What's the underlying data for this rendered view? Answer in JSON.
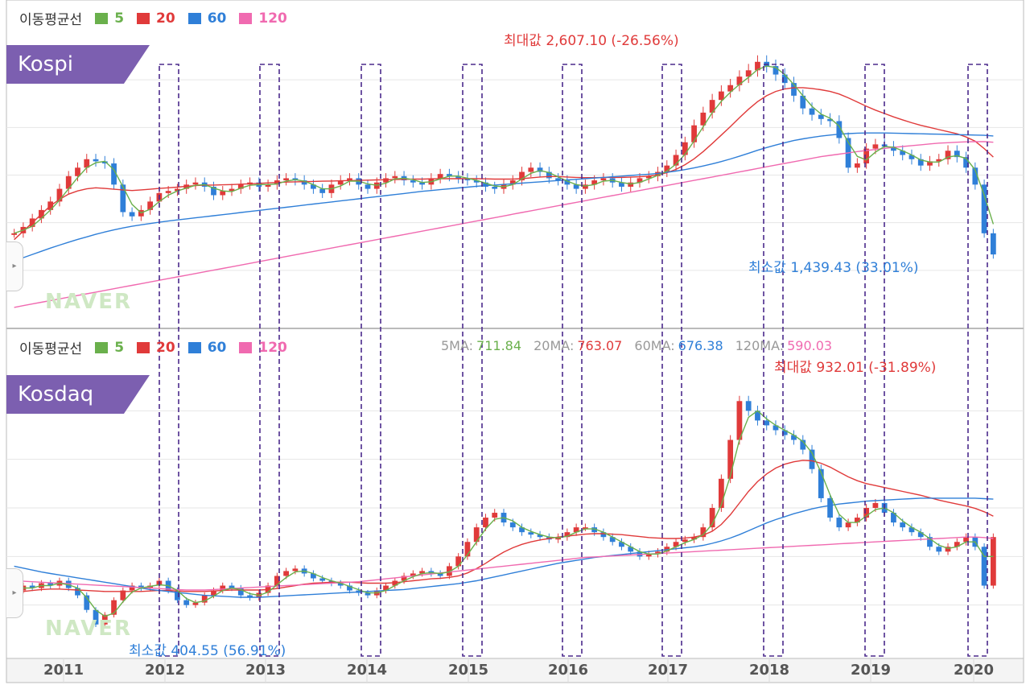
{
  "legend": {
    "title": "이동평균선",
    "items": [
      {
        "label": "5",
        "color": "#6ab04c"
      },
      {
        "label": "20",
        "color": "#e03a3a"
      },
      {
        "label": "60",
        "color": "#2f7fd8"
      },
      {
        "label": "120",
        "color": "#f06ab0"
      }
    ]
  },
  "watermark": "NAVER",
  "readout": {
    "ma5_label": "5MA:",
    "ma5_value": "711.84",
    "ma20_label": "20MA:",
    "ma20_value": "763.07",
    "ma60_label": "60MA:",
    "ma60_value": "676.38",
    "ma120_label": "120MA:",
    "ma120_value": "590.03"
  },
  "chart_data": [
    {
      "type": "candlestick",
      "title": "Kospi",
      "x_ticks": [
        "2011",
        "2012",
        "2013",
        "2014",
        "2015",
        "2016",
        "2017",
        "2018",
        "2019",
        "2020"
      ],
      "max_annotation": "최대값 2,607.10 (-26.56%)",
      "min_annotation": "최소값 1,439.43 (33.01%)",
      "ylim": [
        1350,
        2700
      ],
      "candles": [
        1750,
        1780,
        1820,
        1860,
        1900,
        1960,
        2020,
        2060,
        2100,
        2090,
        2080,
        1980,
        1850,
        1830,
        1860,
        1900,
        1940,
        1950,
        1960,
        1980,
        1990,
        1970,
        1930,
        1950,
        1960,
        1980,
        1990,
        1970,
        1980,
        2000,
        2010,
        2000,
        1980,
        1960,
        1940,
        1980,
        2000,
        2010,
        1980,
        1960,
        1990,
        2010,
        2020,
        2000,
        1990,
        1980,
        2010,
        2030,
        2020,
        2010,
        2000,
        1990,
        1970,
        1960,
        1980,
        2000,
        2040,
        2060,
        2040,
        2010,
        2000,
        1980,
        1960,
        1980,
        2000,
        2010,
        1990,
        1970,
        1990,
        2010,
        2020,
        2040,
        2070,
        2120,
        2180,
        2260,
        2320,
        2380,
        2420,
        2450,
        2490,
        2520,
        2560,
        2540,
        2500,
        2460,
        2400,
        2340,
        2310,
        2290,
        2280,
        2200,
        2060,
        2080,
        2150,
        2170,
        2160,
        2140,
        2120,
        2100,
        2070,
        2090,
        2100,
        2140,
        2110,
        2060,
        1980,
        1750,
        1650
      ],
      "ma20": [
        1720,
        1760,
        1800,
        1840,
        1880,
        1910,
        1935,
        1950,
        1960,
        1965,
        1962,
        1958,
        1955,
        1952,
        1955,
        1958,
        1962,
        1965,
        1968,
        1972,
        1975,
        1978,
        1978,
        1979,
        1980,
        1982,
        1984,
        1986,
        1988,
        1990,
        1992,
        1993,
        1994,
        1995,
        1996,
        1997,
        1998,
        1999,
        2000,
        2001,
        2002,
        2003,
        2004,
        2005,
        2006,
        2006,
        2007,
        2008,
        2008,
        2008,
        2008,
        2008,
        2007,
        2006,
        2006,
        2006,
        2008,
        2012,
        2016,
        2018,
        2018,
        2016,
        2014,
        2013,
        2013,
        2014,
        2014,
        2014,
        2015,
        2017,
        2020,
        2026,
        2036,
        2052,
        2074,
        2102,
        2136,
        2174,
        2214,
        2254,
        2296,
        2336,
        2372,
        2400,
        2420,
        2432,
        2438,
        2438,
        2434,
        2428,
        2420,
        2408,
        2390,
        2370,
        2350,
        2332,
        2316,
        2300,
        2286,
        2272,
        2260,
        2250,
        2240,
        2230,
        2220,
        2205,
        2185,
        2150,
        2110
      ],
      "ma60": [
        1620,
        1635,
        1650,
        1665,
        1680,
        1694,
        1708,
        1721,
        1733,
        1745,
        1756,
        1766,
        1775,
        1783,
        1790,
        1796,
        1802,
        1808,
        1813,
        1818,
        1823,
        1828,
        1833,
        1838,
        1843,
        1848,
        1853,
        1858,
        1863,
        1868,
        1873,
        1878,
        1883,
        1888,
        1893,
        1898,
        1903,
        1908,
        1913,
        1918,
        1923,
        1928,
        1933,
        1938,
        1943,
        1948,
        1952,
        1956,
        1960,
        1964,
        1968,
        1972,
        1975,
        1978,
        1981,
        1984,
        1987,
        1990,
        1993,
        1996,
        1999,
        2002,
        2005,
        2008,
        2011,
        2014,
        2017,
        2020,
        2023,
        2026,
        2029,
        2033,
        2038,
        2044,
        2051,
        2059,
        2068,
        2078,
        2089,
        2101,
        2114,
        2128,
        2142,
        2155,
        2167,
        2178,
        2188,
        2196,
        2203,
        2209,
        2214,
        2218,
        2221,
        2223,
        2224,
        2224,
        2224,
        2223,
        2222,
        2221,
        2220,
        2219,
        2218,
        2217,
        2216,
        2215,
        2214,
        2213,
        2210
      ],
      "ma120": [
        1400,
        1408,
        1416,
        1424,
        1432,
        1440,
        1448,
        1456,
        1464,
        1472,
        1480,
        1488,
        1496,
        1504,
        1512,
        1520,
        1528,
        1536,
        1544,
        1552,
        1560,
        1568,
        1576,
        1584,
        1592,
        1600,
        1608,
        1616,
        1624,
        1632,
        1640,
        1648,
        1656,
        1664,
        1672,
        1680,
        1688,
        1696,
        1704,
        1712,
        1720,
        1728,
        1736,
        1744,
        1752,
        1760,
        1768,
        1776,
        1784,
        1792,
        1800,
        1808,
        1816,
        1824,
        1832,
        1840,
        1848,
        1856,
        1864,
        1872,
        1880,
        1888,
        1896,
        1904,
        1912,
        1920,
        1928,
        1936,
        1944,
        1952,
        1960,
        1968,
        1976,
        1984,
        1992,
        2000,
        2008,
        2016,
        2024,
        2032,
        2040,
        2048,
        2056,
        2064,
        2072,
        2080,
        2088,
        2096,
        2104,
        2112,
        2118,
        2124,
        2130,
        2136,
        2141,
        2146,
        2151,
        2156,
        2160,
        2164,
        2168,
        2172,
        2176,
        2178,
        2180,
        2182,
        2183,
        2183,
        2180
      ]
    },
    {
      "type": "candlestick",
      "title": "Kosdaq",
      "x_ticks": [
        "2011",
        "2012",
        "2013",
        "2014",
        "2015",
        "2016",
        "2017",
        "2018",
        "2019",
        "2020"
      ],
      "max_annotation": "최대값 932.01 (-31.89%)",
      "min_annotation": "최소값 404.55 (56.91%)",
      "ylim": [
        380,
        980
      ],
      "candles": [
        510,
        520,
        515,
        525,
        520,
        530,
        515,
        500,
        470,
        440,
        460,
        490,
        510,
        520,
        515,
        520,
        530,
        510,
        490,
        480,
        485,
        500,
        510,
        520,
        515,
        500,
        495,
        505,
        520,
        540,
        550,
        555,
        545,
        535,
        530,
        525,
        520,
        510,
        505,
        500,
        510,
        520,
        530,
        540,
        545,
        550,
        545,
        540,
        560,
        580,
        610,
        640,
        660,
        670,
        650,
        640,
        630,
        625,
        620,
        615,
        620,
        630,
        640,
        640,
        630,
        620,
        610,
        600,
        590,
        580,
        585,
        590,
        600,
        610,
        615,
        620,
        640,
        680,
        740,
        820,
        900,
        880,
        860,
        850,
        840,
        830,
        820,
        800,
        760,
        700,
        660,
        640,
        650,
        660,
        680,
        690,
        670,
        650,
        640,
        630,
        620,
        600,
        590,
        600,
        610,
        620,
        600,
        520,
        620
      ],
      "ma20": [
        505,
        508,
        510,
        512,
        513,
        513,
        512,
        511,
        510,
        509,
        508,
        508,
        508,
        508,
        508,
        509,
        510,
        510,
        509,
        508,
        508,
        508,
        509,
        510,
        511,
        511,
        511,
        511,
        512,
        514,
        517,
        520,
        523,
        525,
        526,
        527,
        527,
        527,
        526,
        525,
        525,
        525,
        526,
        528,
        530,
        532,
        534,
        535,
        537,
        540,
        546,
        555,
        566,
        578,
        589,
        598,
        605,
        610,
        614,
        617,
        620,
        622,
        624,
        626,
        627,
        627,
        626,
        625,
        623,
        621,
        619,
        618,
        617,
        617,
        618,
        620,
        624,
        632,
        646,
        666,
        690,
        714,
        734,
        750,
        762,
        770,
        775,
        778,
        777,
        772,
        764,
        754,
        744,
        736,
        730,
        726,
        722,
        718,
        714,
        710,
        706,
        701,
        696,
        692,
        688,
        684,
        679,
        672,
        663
      ],
      "ma60": [
        560,
        556,
        552,
        548,
        545,
        542,
        539,
        536,
        533,
        530,
        527,
        524,
        521,
        518,
        515,
        512,
        510,
        508,
        506,
        504,
        502,
        500,
        499,
        498,
        497,
        496,
        496,
        496,
        497,
        498,
        499,
        500,
        501,
        502,
        503,
        504,
        505,
        506,
        507,
        508,
        509,
        510,
        511,
        512,
        514,
        516,
        518,
        520,
        522,
        524,
        527,
        530,
        534,
        538,
        542,
        546,
        550,
        554,
        558,
        562,
        566,
        569,
        572,
        575,
        578,
        580,
        582,
        584,
        586,
        588,
        590,
        592,
        594,
        596,
        598,
        600,
        603,
        607,
        612,
        618,
        625,
        633,
        641,
        649,
        656,
        662,
        668,
        673,
        678,
        682,
        685,
        688,
        690,
        692,
        694,
        695,
        696,
        697,
        698,
        699,
        700,
        700,
        700,
        700,
        700,
        700,
        700,
        699,
        698
      ],
      "ma120": [
        530,
        529,
        528,
        527,
        526,
        525,
        524,
        523,
        522,
        521,
        520,
        519,
        518,
        517,
        516,
        515,
        514,
        513,
        512,
        511,
        511,
        511,
        512,
        513,
        514,
        515,
        516,
        517,
        518,
        519,
        520,
        521,
        522,
        523,
        524,
        525,
        526,
        527,
        528,
        530,
        532,
        534,
        536,
        538,
        540,
        542,
        544,
        546,
        548,
        550,
        552,
        554,
        556,
        558,
        560,
        562,
        564,
        566,
        568,
        570,
        572,
        574,
        576,
        578,
        579,
        580,
        581,
        582,
        583,
        584,
        585,
        586,
        587,
        588,
        589,
        590,
        591,
        592,
        593,
        594,
        595,
        596,
        597,
        598,
        599,
        600,
        601,
        602,
        603,
        604,
        605,
        606,
        607,
        608,
        609,
        610,
        611,
        612,
        613,
        614,
        615,
        616,
        617,
        618,
        619,
        620,
        620,
        619,
        617
      ]
    }
  ]
}
